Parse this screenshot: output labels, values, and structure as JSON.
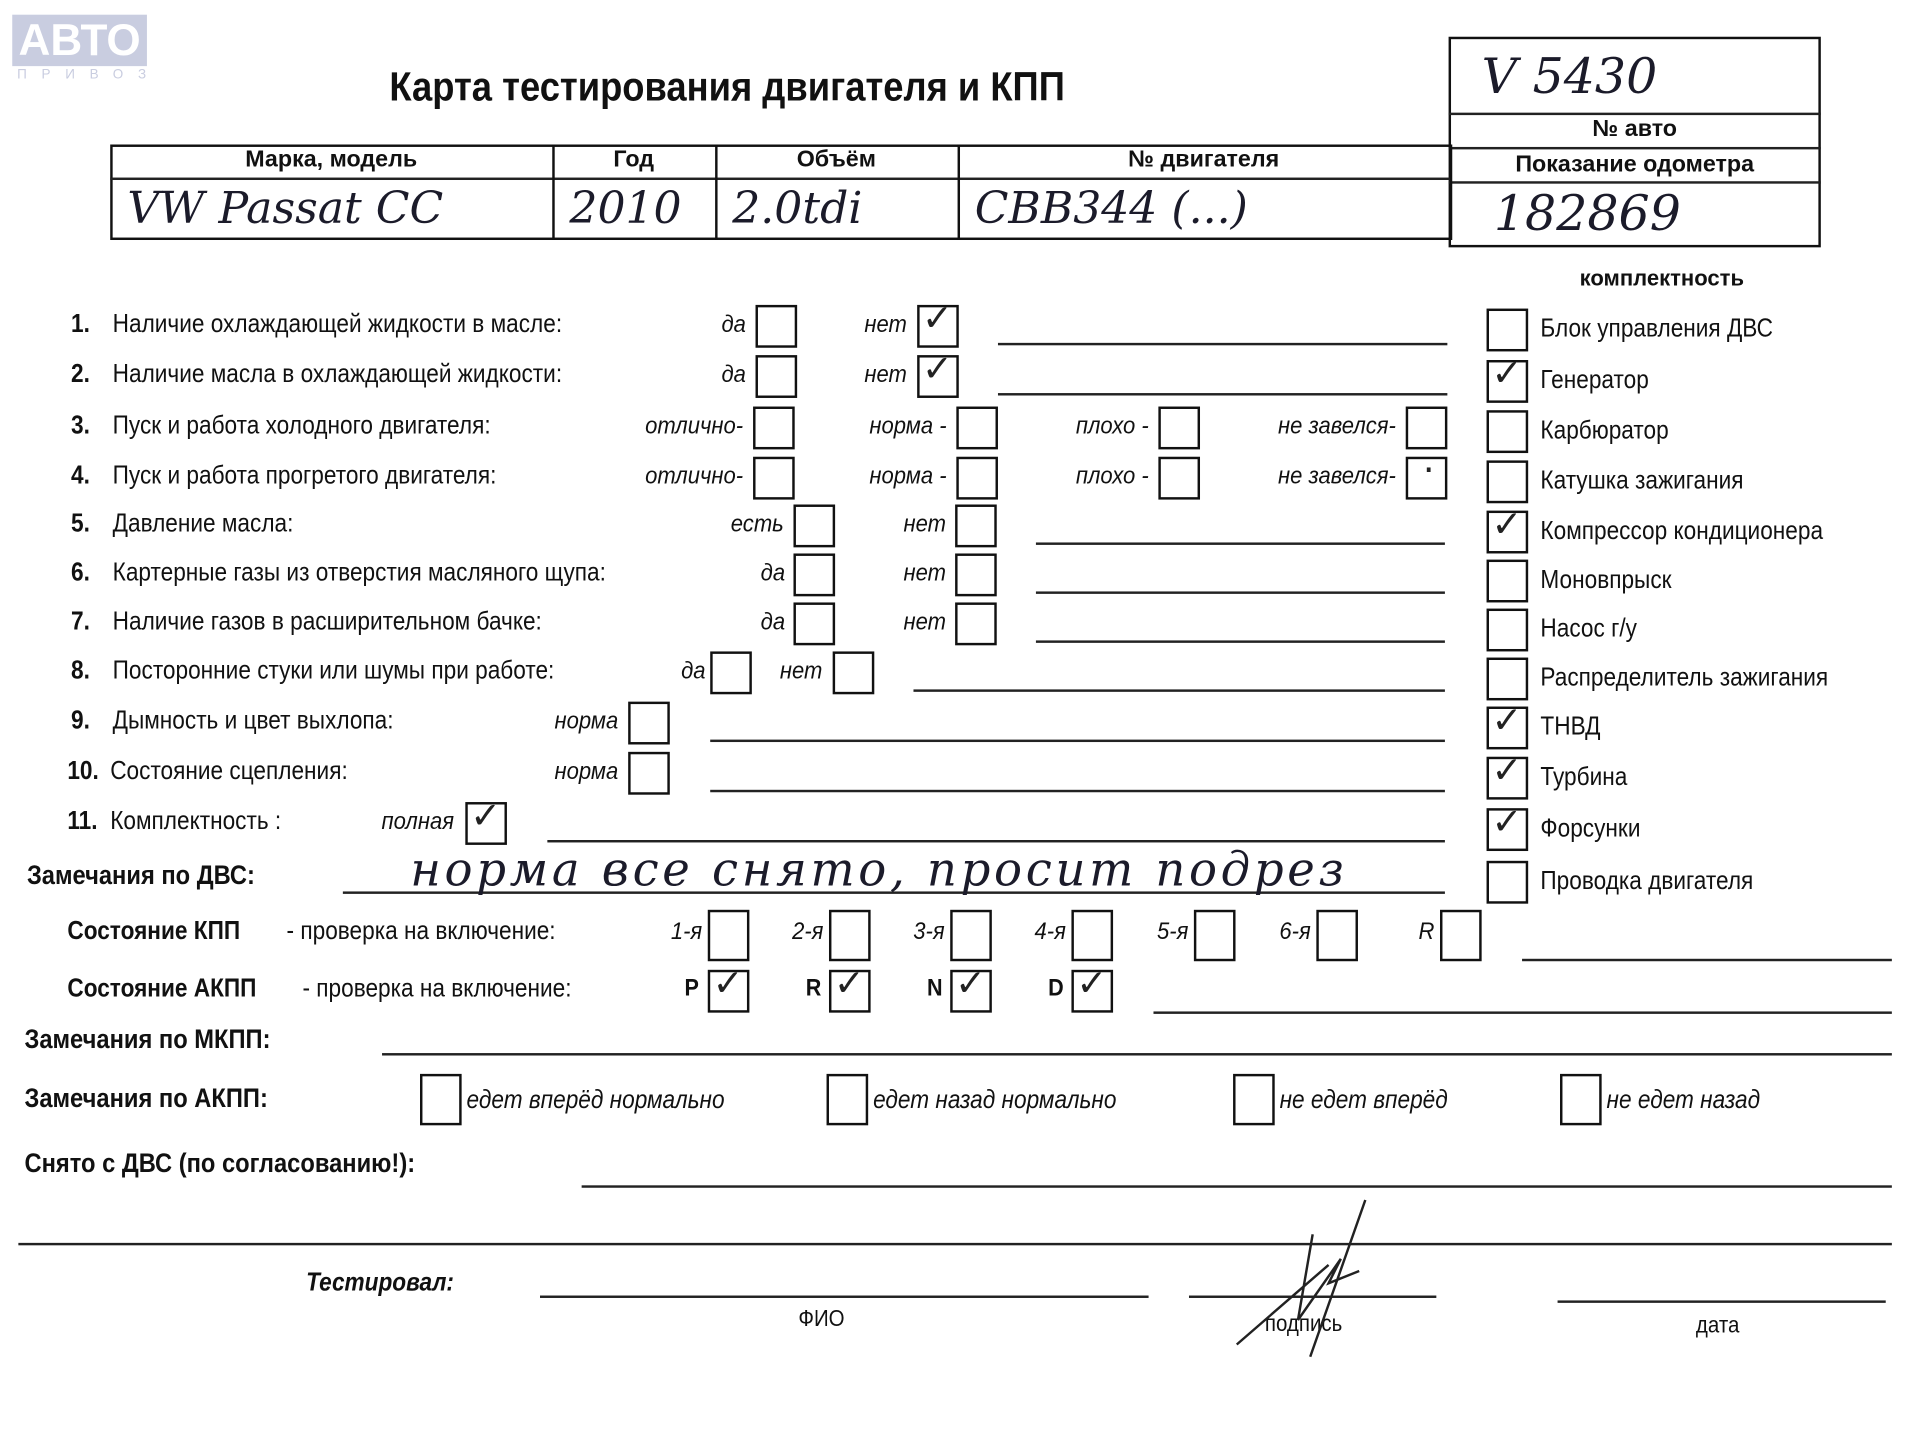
{
  "logo": {
    "text": "АВТО",
    "sub": "ПРИВОЗ"
  },
  "title": "Карта тестирования двигателя  и КПП",
  "car_no": {
    "value": "V 5430",
    "label": "№ авто"
  },
  "odometer": {
    "label": "Показание одометра",
    "value": "182869"
  },
  "table": {
    "headers": [
      "Марка, модель",
      "Год",
      "Объём",
      "№ двигателя"
    ],
    "values": [
      "VW  Passat CC",
      "2010",
      "2.0tdi",
      "CBB344 (...)"
    ]
  },
  "completeness": {
    "title": "комплектность",
    "items": [
      {
        "label": "Блок управления ДВС",
        "checked": false
      },
      {
        "label": "Генератор",
        "checked": true
      },
      {
        "label": "Карбюратор",
        "checked": false
      },
      {
        "label": "Катушка зажигания",
        "checked": false
      },
      {
        "label": "Компрессор кондиционера",
        "checked": true
      },
      {
        "label": "Моновпрыск",
        "checked": false
      },
      {
        "label": "Насос г/у",
        "checked": false
      },
      {
        "label": "Распределитель зажигания",
        "checked": false
      },
      {
        "label": "ТНВД",
        "checked": true
      },
      {
        "label": "Турбина",
        "checked": true
      },
      {
        "label": "Форсунки",
        "checked": true
      },
      {
        "label": "Проводка двигателя",
        "checked": false
      }
    ]
  },
  "items": [
    {
      "num": "1.",
      "label": "Наличие охлаждающей жидкости в масле:",
      "options": [
        {
          "label": "да",
          "checked": false
        },
        {
          "label": "нет",
          "checked": true
        }
      ]
    },
    {
      "num": "2.",
      "label": "Наличие масла в охлаждающей жидкости:",
      "options": [
        {
          "label": "да",
          "checked": false
        },
        {
          "label": "нет",
          "checked": true
        }
      ]
    },
    {
      "num": "3.",
      "label": "Пуск и работа холодного двигателя:",
      "options": [
        {
          "label": "отлично-",
          "checked": false
        },
        {
          "label": "норма -",
          "checked": false
        },
        {
          "label": "плохо -",
          "checked": false
        },
        {
          "label": "не завелся-",
          "checked": false
        }
      ]
    },
    {
      "num": "4.",
      "label": "Пуск и работа прогретого двигателя:",
      "options": [
        {
          "label": "отлично-",
          "checked": false
        },
        {
          "label": "норма -",
          "checked": false
        },
        {
          "label": "плохо -",
          "checked": false
        },
        {
          "label": "не завелся-",
          "checked": false,
          "mark": "dot"
        }
      ]
    },
    {
      "num": "5.",
      "label": "Давление масла:",
      "options": [
        {
          "label": "есть",
          "checked": false
        },
        {
          "label": "нет",
          "checked": false
        }
      ]
    },
    {
      "num": "6.",
      "label": "Картерные газы из отверстия масляного щупа:",
      "options": [
        {
          "label": "да",
          "checked": false
        },
        {
          "label": "нет",
          "checked": false
        }
      ]
    },
    {
      "num": "7.",
      "label": "Наличие газов в расширительном бачке:",
      "options": [
        {
          "label": "да",
          "checked": false
        },
        {
          "label": "нет",
          "checked": false
        }
      ]
    },
    {
      "num": "8.",
      "label": "Посторонние стуки или шумы при работе:",
      "options": [
        {
          "label": "да",
          "checked": false
        },
        {
          "label": "нет",
          "checked": false
        }
      ]
    },
    {
      "num": "9.",
      "label": "Дымность и цвет выхлопа:",
      "options": [
        {
          "label": "норма",
          "checked": false
        }
      ]
    },
    {
      "num": "10.",
      "label": "Состояние сцепления:",
      "options": [
        {
          "label": "норма",
          "checked": false
        }
      ]
    },
    {
      "num": "11.",
      "label": "Комплектность :",
      "options": [
        {
          "label": "полная",
          "checked": true
        }
      ]
    }
  ],
  "engine_remarks": {
    "label": "Замечания по ДВС:",
    "value": "норма все снято, просит подрез"
  },
  "manual_gearbox": {
    "label_bold": "Состояние КПП",
    "label": " - проверка на включение:",
    "gears": [
      {
        "label": "1-я",
        "checked": false
      },
      {
        "label": "2-я",
        "checked": false
      },
      {
        "label": "3-я",
        "checked": false
      },
      {
        "label": "4-я",
        "checked": false
      },
      {
        "label": "5-я",
        "checked": false
      },
      {
        "label": "6-я",
        "checked": false
      },
      {
        "label": "R",
        "checked": false
      }
    ]
  },
  "auto_gearbox": {
    "label_bold": "Состояние АКПП",
    "label": " - проверка на включение:",
    "gears": [
      {
        "label": "P",
        "checked": true
      },
      {
        "label": "R",
        "checked": true
      },
      {
        "label": "N",
        "checked": true
      },
      {
        "label": "D",
        "checked": true
      }
    ]
  },
  "mkpp_remarks": {
    "label": "Замечания по МКПП:"
  },
  "akpp_remarks": {
    "label": "Замечания по АКПП:",
    "options": [
      {
        "label": "едет вперёд нормально",
        "checked": false
      },
      {
        "label": "едет назад нормально",
        "checked": false
      },
      {
        "label": "не едет вперёд",
        "checked": false
      },
      {
        "label": "не едет назад",
        "checked": false
      }
    ]
  },
  "removed": {
    "label": "Снято с ДВС (по согласованию!):"
  },
  "tested_by": {
    "label": "Тестировал:",
    "fio": "ФИО",
    "signature": "подпись",
    "date": "дата"
  }
}
